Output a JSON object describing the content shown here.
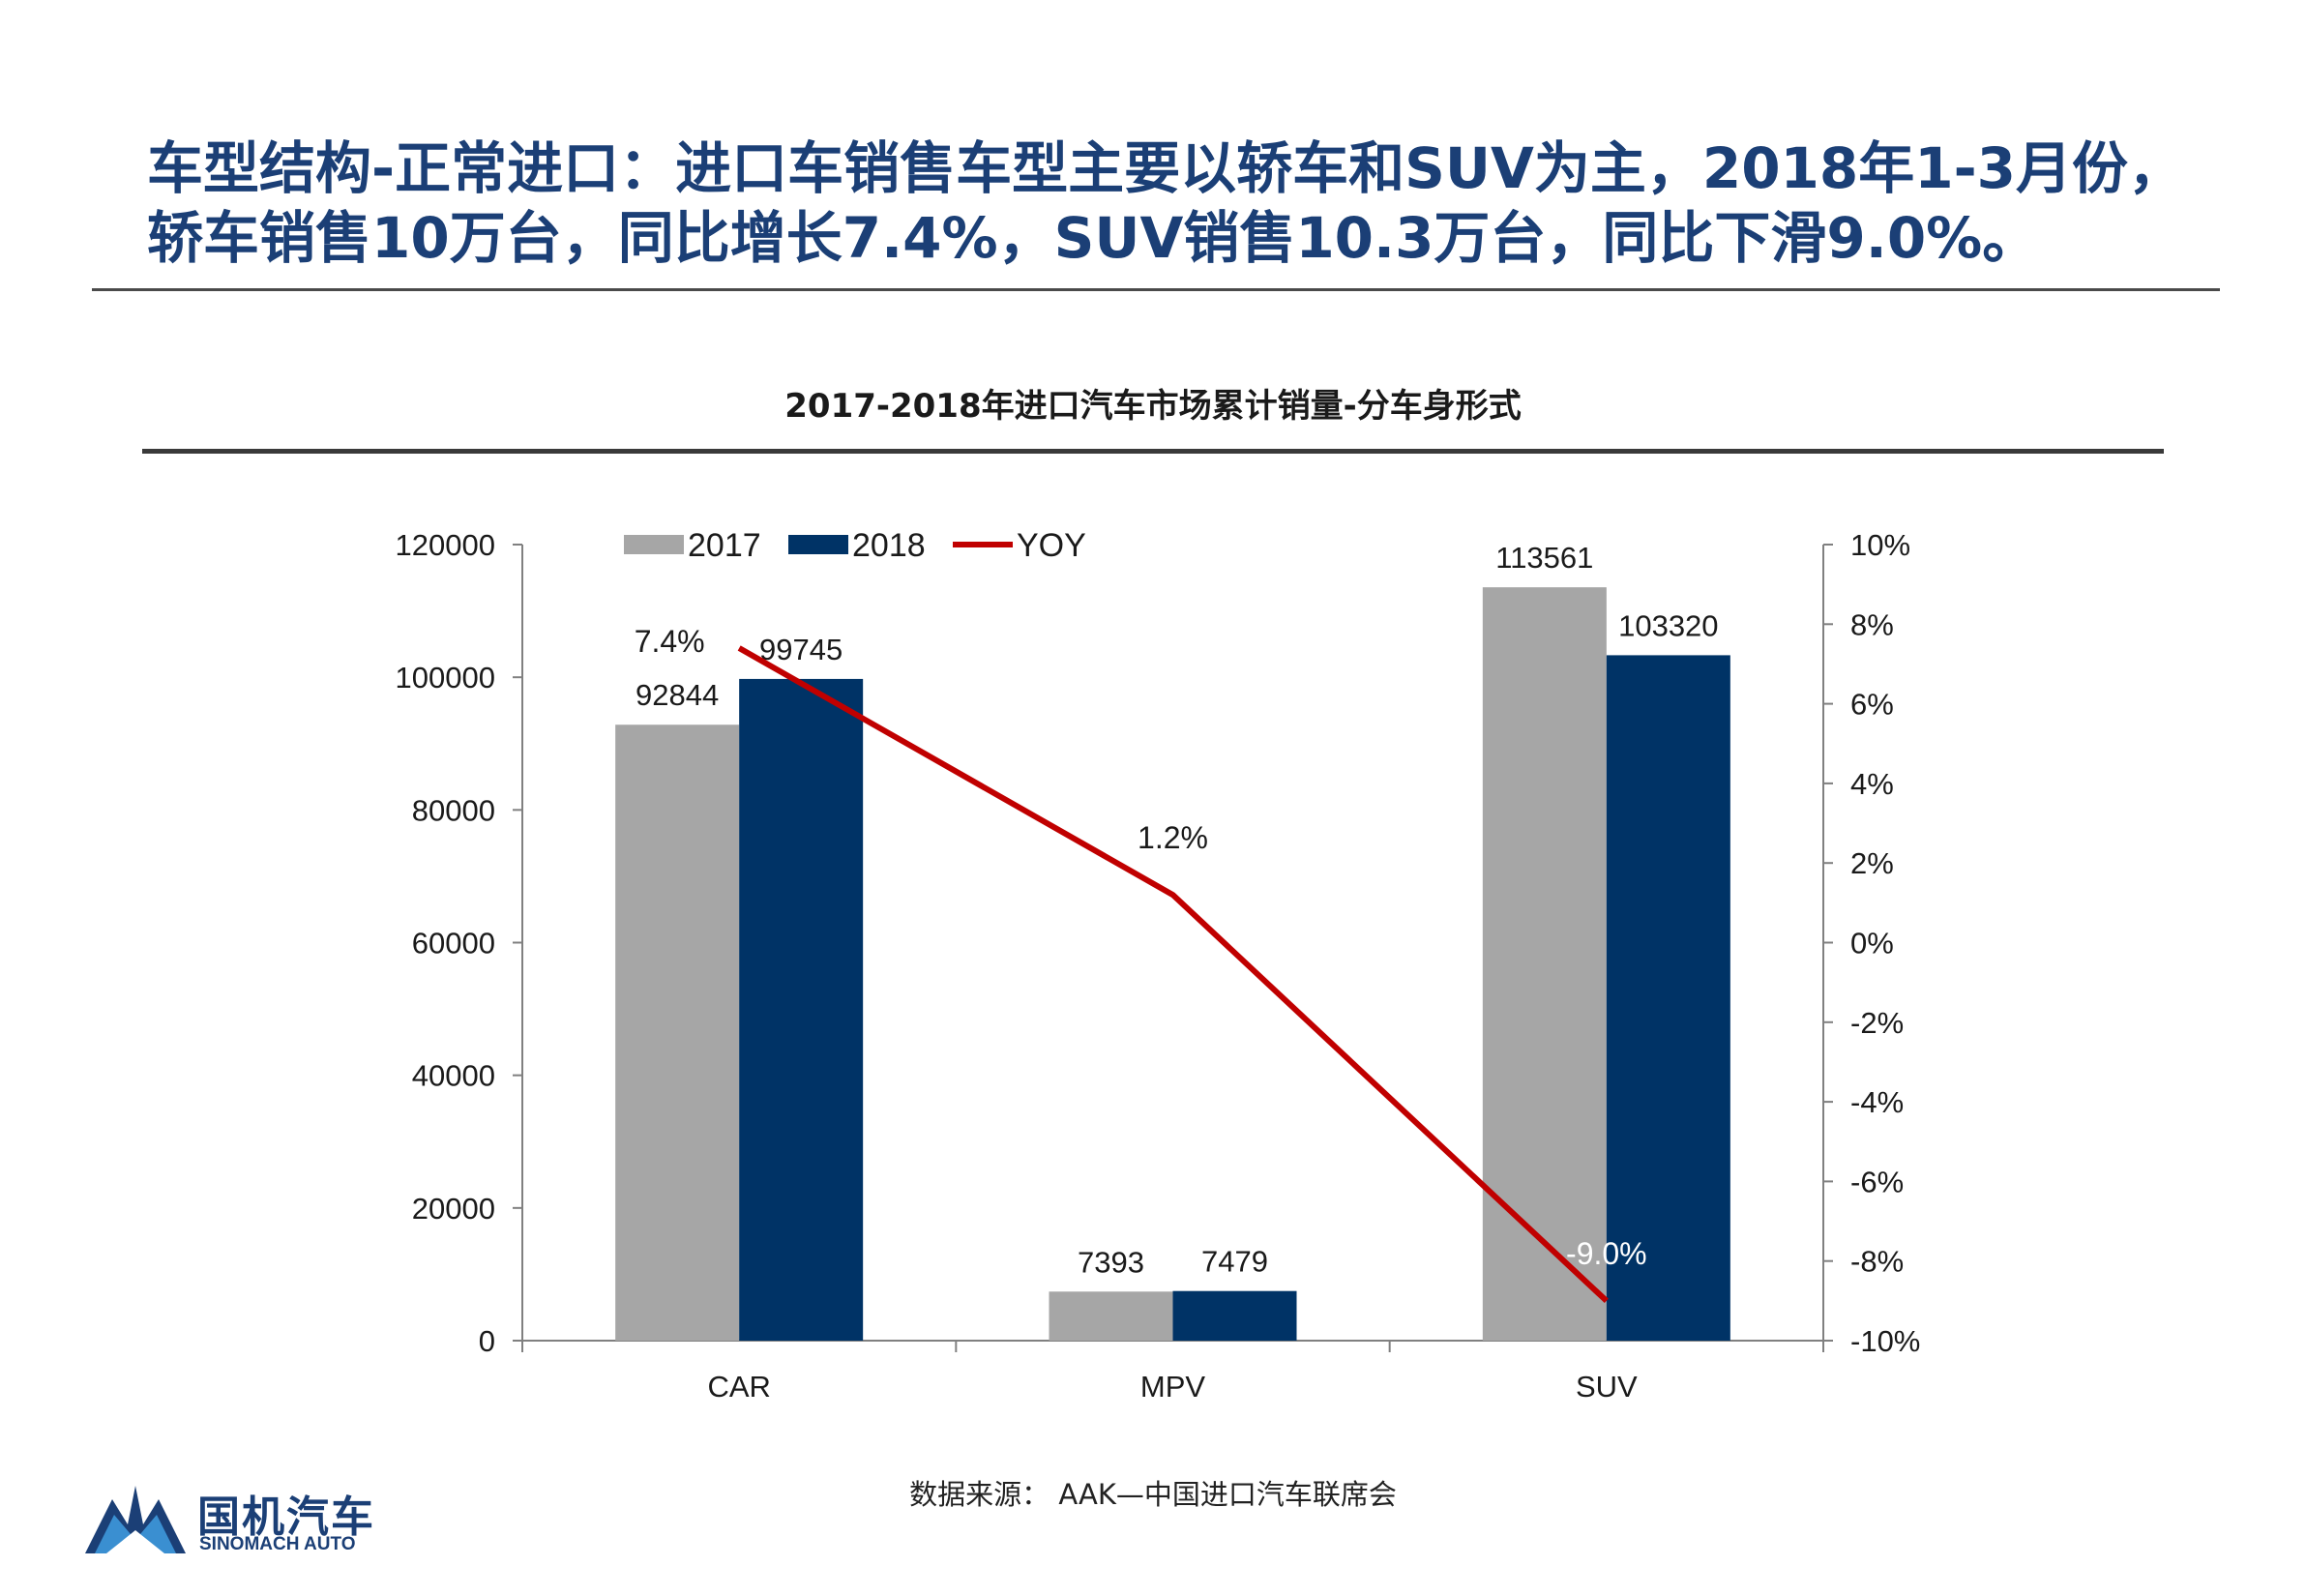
{
  "headline": {
    "line1": "车型结构-正常进口：进口车销售车型主要以轿车和SUV为主，2018年1-3月份，",
    "line2": "轿车销售10万台，同比增长7.4%，SUV销售10.3万台，同比下滑9.0%。"
  },
  "footer": {
    "source": "数据来源： AAK—中国进口汽车联席会",
    "logo_cn": "国机汽车",
    "logo_en": "SINOMACH AUTO"
  },
  "colors": {
    "title": "#1b3f76",
    "bar_2017": "#a6a6a6",
    "bar_2018": "#003366",
    "yoy_line": "#c00000"
  },
  "chart_data": {
    "type": "bar",
    "title": "2017-2018年进口汽车市场累计销量-分车身形式",
    "categories": [
      "CAR",
      "MPV",
      "SUV"
    ],
    "series": [
      {
        "name": "2017",
        "type": "bar",
        "axis": "left",
        "values": [
          92844,
          7393,
          113561
        ],
        "labels": [
          "92844",
          "7393",
          "113561"
        ]
      },
      {
        "name": "2018",
        "type": "bar",
        "axis": "left",
        "values": [
          99745,
          7479,
          103320
        ],
        "labels": [
          "99745",
          "7479",
          "103320"
        ]
      },
      {
        "name": "YOY",
        "type": "line",
        "axis": "right",
        "values": [
          7.4,
          1.2,
          -9.0
        ],
        "labels": [
          "7.4%",
          "1.2%",
          "-9.0%"
        ]
      }
    ],
    "ylim": [
      0,
      120000
    ],
    "yticks": [
      "0",
      "20000",
      "40000",
      "60000",
      "80000",
      "100000",
      "120000"
    ],
    "y2lim": [
      -10,
      10
    ],
    "y2ticks": [
      "-10%",
      "-8%",
      "-6%",
      "-4%",
      "-2%",
      "0%",
      "2%",
      "4%",
      "6%",
      "8%",
      "10%"
    ],
    "legend": [
      "2017",
      "2018",
      "YOY"
    ],
    "legend_position": "top",
    "grid": false
  }
}
